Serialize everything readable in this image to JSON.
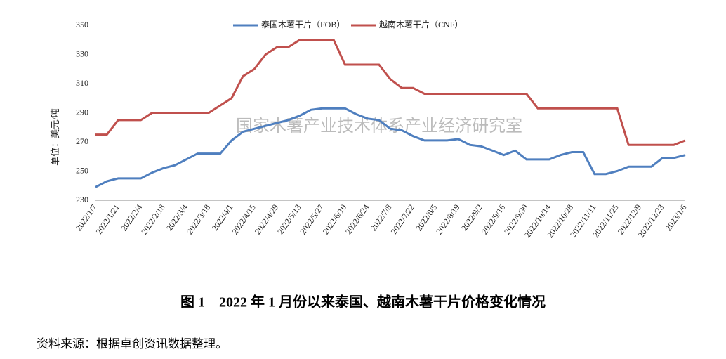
{
  "chart_data": {
    "type": "line",
    "y_label": "单位：美元/吨",
    "watermark": "国家木薯产业技术体系产业经济研究室",
    "caption": "图 1　2022 年 1 月份以来泰国、越南木薯干片价格变化情况",
    "source": "资料来源：根据卓创资讯数据整理。",
    "categories": [
      "2022/1/7",
      null,
      "2022/1/21",
      null,
      "2022/2/4",
      null,
      "2022/2/18",
      null,
      "2022/3/4",
      null,
      "2022/3/18",
      null,
      "2022/4/1",
      null,
      "2022/4/15",
      null,
      "2022/4/29",
      null,
      "2022/5/13",
      null,
      "2022/5/27",
      null,
      "2022/6/10",
      null,
      "2022/6/24",
      null,
      "2022/7/8",
      null,
      "2022/7/22",
      null,
      "2022/8/5",
      null,
      "2022/8/19",
      null,
      "2022/9/2",
      null,
      "2022/9/16",
      null,
      "2022/9/30",
      null,
      "2022/10/14",
      null,
      "2022/10/28",
      null,
      "2022/11/11",
      null,
      "2022/11/25",
      null,
      "2022/12/9",
      null,
      "2022/12/23",
      null,
      "2023/1/6"
    ],
    "series": [
      {
        "name": "泰国木薯干片（FOB）",
        "color": "#4f7fbf",
        "values": [
          239,
          243,
          245,
          245,
          245,
          249,
          252,
          254,
          258,
          262,
          262,
          262,
          271,
          277,
          279,
          281,
          283,
          285,
          288,
          292,
          293,
          293,
          293,
          289,
          286,
          285,
          279,
          278,
          274,
          271,
          271,
          271,
          272,
          268,
          267,
          264,
          261,
          264,
          258,
          258,
          258,
          261,
          263,
          263,
          248,
          248,
          250,
          253,
          253,
          253,
          259,
          259,
          261
        ]
      },
      {
        "name": "越南木薯干片（CNF）",
        "color": "#c0504d",
        "values": [
          275,
          275,
          285,
          285,
          285,
          290,
          290,
          290,
          290,
          290,
          290,
          295,
          300,
          315,
          320,
          330,
          335,
          335,
          340,
          340,
          340,
          340,
          323,
          323,
          323,
          323,
          313,
          307,
          307,
          303,
          303,
          303,
          303,
          303,
          303,
          303,
          303,
          303,
          303,
          293,
          293,
          293,
          293,
          293,
          293,
          293,
          293,
          268,
          268,
          268,
          268,
          268,
          271
        ]
      }
    ],
    "ylim": [
      230,
      350
    ],
    "yticks": [
      230,
      250,
      270,
      290,
      310,
      330,
      350
    ]
  }
}
